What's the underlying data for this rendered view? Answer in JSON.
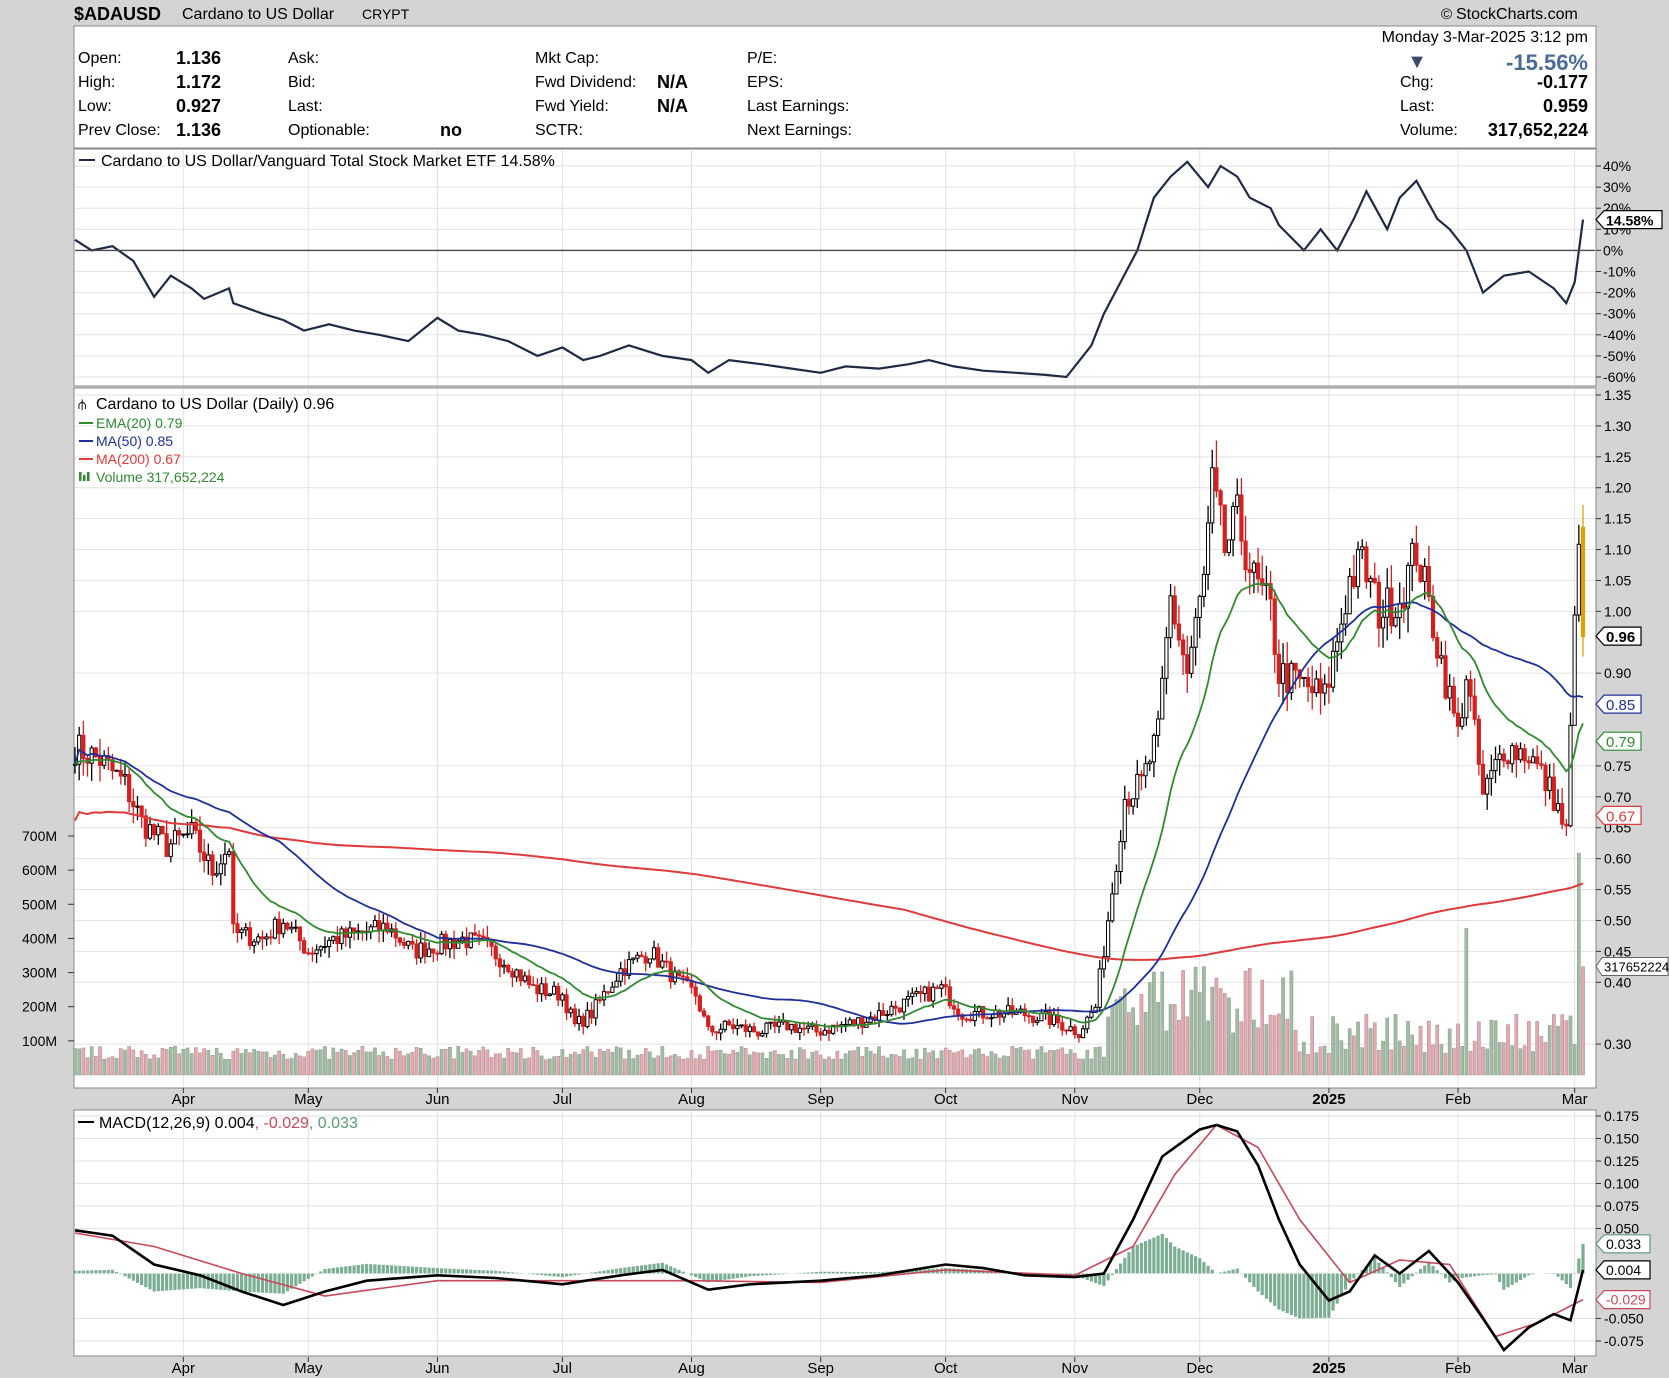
{
  "header": {
    "symbol": "$ADAUSD",
    "name": "Cardano to US Dollar",
    "exchange": "CRYPT",
    "brand": "StockCharts.com",
    "brand_symbol": "©"
  },
  "info": {
    "date": "Monday  3-Mar-2025  3:12 pm",
    "change_arrow": "▼",
    "change_pct": "-15.56%",
    "col1": [
      {
        "label": "Open:",
        "value": "1.136"
      },
      {
        "label": "High:",
        "value": "1.172"
      },
      {
        "label": "Low:",
        "value": "0.927"
      },
      {
        "label": "Prev Close:",
        "value": "1.136"
      }
    ],
    "col2": [
      {
        "label": "Ask:",
        "value": ""
      },
      {
        "label": "Bid:",
        "value": ""
      },
      {
        "label": "Last:",
        "value": ""
      },
      {
        "label": "Optionable:",
        "value": "no"
      }
    ],
    "col3": [
      {
        "label": "Mkt Cap:",
        "value": ""
      },
      {
        "label": "Fwd Dividend:",
        "value": "N/A"
      },
      {
        "label": "Fwd Yield:",
        "value": "N/A"
      },
      {
        "label": "SCTR:",
        "value": ""
      }
    ],
    "col4": [
      {
        "label": "P/E:",
        "value": ""
      },
      {
        "label": "EPS:",
        "value": ""
      },
      {
        "label": "Last Earnings:",
        "value": ""
      },
      {
        "label": "Next Earnings:",
        "value": ""
      }
    ],
    "right": [
      {
        "label": "Chg:",
        "value": "-0.177"
      },
      {
        "label": "Last:",
        "value": "0.959"
      },
      {
        "label": "Volume:",
        "value": "317,652,224"
      }
    ]
  },
  "colors": {
    "background": "#d4d4d4",
    "panel": "#ffffff",
    "grid": "#e2e2e2",
    "up": "#000000",
    "down": "#d62020",
    "ema20": "#2e8b2e",
    "ma50": "#1e2e9a",
    "ma200": "#e03a3a",
    "ratio": "#1f2a44",
    "volume_up": "#9fbd9f",
    "volume_down": "#e8a6ae",
    "macd_line": "#000000",
    "macd_signal": "#c8485a",
    "macd_hist": "#5b9a78"
  },
  "chart_data": [
    {
      "type": "line",
      "title": "Cardano to US Dollar/Vanguard Total Stock Market ETF 14.58%",
      "y_unit": "%",
      "ylim": [
        -60,
        40
      ],
      "y_ticks": [
        40,
        30,
        20,
        10,
        0,
        -10,
        -20,
        -30,
        -40,
        -50,
        -60
      ],
      "last_value_label": "14.58%",
      "series": [
        {
          "name": "Cardano to US Dollar/Vanguard Total Stock Market ETF",
          "x": [
            "2024-03-06",
            "2024-03-10",
            "2024-03-15",
            "2024-03-20",
            "2024-03-25",
            "2024-03-29",
            "2024-04-03",
            "2024-04-06",
            "2024-04-12",
            "2024-04-13",
            "2024-04-20",
            "2024-04-25",
            "2024-04-30",
            "2024-05-06",
            "2024-05-12",
            "2024-05-18",
            "2024-05-25",
            "2024-06-01",
            "2024-06-06",
            "2024-06-12",
            "2024-06-18",
            "2024-06-25",
            "2024-07-01",
            "2024-07-06",
            "2024-07-10",
            "2024-07-17",
            "2024-07-25",
            "2024-08-01",
            "2024-08-05",
            "2024-08-10",
            "2024-08-18",
            "2024-08-25",
            "2024-09-01",
            "2024-09-07",
            "2024-09-15",
            "2024-09-22",
            "2024-09-27",
            "2024-10-03",
            "2024-10-10",
            "2024-10-18",
            "2024-10-25",
            "2024-10-30",
            "2024-11-05",
            "2024-11-08",
            "2024-11-12",
            "2024-11-16",
            "2024-11-20",
            "2024-11-24",
            "2024-11-28",
            "2024-12-03",
            "2024-12-06",
            "2024-12-10",
            "2024-12-13",
            "2024-12-18",
            "2024-12-20",
            "2024-12-26",
            "2024-12-30",
            "2025-01-03",
            "2025-01-07",
            "2025-01-10",
            "2025-01-15",
            "2025-01-18",
            "2025-01-22",
            "2025-01-27",
            "2025-01-30",
            "2025-02-03",
            "2025-02-07",
            "2025-02-12",
            "2025-02-18",
            "2025-02-24",
            "2025-02-27",
            "2025-03-01",
            "2025-03-03"
          ],
          "values": [
            5,
            0,
            2,
            -5,
            -22,
            -12,
            -18,
            -23,
            -18,
            -25,
            -30,
            -33,
            -38,
            -35,
            -38,
            -40,
            -43,
            -32,
            -38,
            -40,
            -43,
            -50,
            -46,
            -52,
            -50,
            -45,
            -50,
            -52,
            -58,
            -52,
            -54,
            -56,
            -58,
            -55,
            -56,
            -54,
            -52,
            -55,
            -57,
            -58,
            -59,
            -60,
            -45,
            -30,
            -15,
            0,
            25,
            35,
            42,
            30,
            40,
            35,
            25,
            20,
            12,
            0,
            10,
            0,
            15,
            28,
            10,
            25,
            33,
            15,
            10,
            0,
            -20,
            -12,
            -10,
            -18,
            -25,
            -15,
            14.58
          ]
        }
      ]
    },
    {
      "type": "candlestick",
      "title": "Cardano to US Dollar (Daily) 0.96",
      "ylim": [
        0.25,
        1.35
      ],
      "y_ticks": [
        1.35,
        1.3,
        1.25,
        1.2,
        1.15,
        1.1,
        1.05,
        1.0,
        0.9,
        0.75,
        0.7,
        0.65,
        0.6,
        0.55,
        0.5,
        0.45,
        0.4,
        0.3
      ],
      "x_labels": [
        "Apr",
        "May",
        "Jun",
        "Jul",
        "Aug",
        "Sep",
        "Oct",
        "Nov",
        "Dec",
        "2025",
        "Feb",
        "Mar"
      ],
      "legend": [
        {
          "label": "EMA(20) 0.79",
          "color": "#2e8b2e",
          "kind": "line"
        },
        {
          "label": "MA(50) 0.85",
          "color": "#1e2e9a",
          "kind": "line"
        },
        {
          "label": "MA(200) 0.67",
          "color": "#e03a3a",
          "kind": "line"
        },
        {
          "label": "Volume 317,652,224",
          "color": "#2e8b2e",
          "kind": "bars"
        }
      ],
      "price_tags": [
        {
          "label": "0.96",
          "value": 0.96,
          "style": "bold"
        },
        {
          "label": "0.85",
          "value": 0.85,
          "color": "#1e2e9a"
        },
        {
          "label": "0.79",
          "value": 0.79,
          "color": "#2e8b2e"
        },
        {
          "label": "0.67",
          "value": 0.67,
          "color": "#e03a3a"
        }
      ],
      "close_series": {
        "x": [
          "2024-03-06",
          "2024-03-12",
          "2024-03-18",
          "2024-03-22",
          "2024-03-28",
          "2024-04-03",
          "2024-04-08",
          "2024-04-12",
          "2024-04-13",
          "2024-04-20",
          "2024-04-25",
          "2024-05-01",
          "2024-05-07",
          "2024-05-14",
          "2024-05-20",
          "2024-05-26",
          "2024-06-01",
          "2024-06-07",
          "2024-06-12",
          "2024-06-18",
          "2024-06-24",
          "2024-07-01",
          "2024-07-04",
          "2024-07-08",
          "2024-07-15",
          "2024-07-22",
          "2024-07-29",
          "2024-08-02",
          "2024-08-05",
          "2024-08-10",
          "2024-08-17",
          "2024-08-24",
          "2024-08-31",
          "2024-09-06",
          "2024-09-12",
          "2024-09-19",
          "2024-09-26",
          "2024-09-30",
          "2024-10-05",
          "2024-10-12",
          "2024-10-19",
          "2024-10-26",
          "2024-11-02",
          "2024-11-06",
          "2024-11-10",
          "2024-11-13",
          "2024-11-17",
          "2024-11-21",
          "2024-11-24",
          "2024-11-28",
          "2024-12-02",
          "2024-12-04",
          "2024-12-07",
          "2024-12-10",
          "2024-12-14",
          "2024-12-18",
          "2024-12-20",
          "2024-12-26",
          "2024-12-31",
          "2025-01-06",
          "2025-01-09",
          "2025-01-13",
          "2025-01-18",
          "2025-01-22",
          "2025-01-27",
          "2025-02-01",
          "2025-02-03",
          "2025-02-07",
          "2025-02-12",
          "2025-02-18",
          "2025-02-24",
          "2025-02-27",
          "2025-03-02",
          "2025-03-03"
        ],
        "values": [
          0.78,
          0.76,
          0.72,
          0.66,
          0.62,
          0.64,
          0.58,
          0.62,
          0.48,
          0.47,
          0.5,
          0.45,
          0.47,
          0.48,
          0.49,
          0.45,
          0.46,
          0.47,
          0.46,
          0.43,
          0.39,
          0.38,
          0.33,
          0.35,
          0.42,
          0.45,
          0.4,
          0.38,
          0.32,
          0.33,
          0.32,
          0.33,
          0.32,
          0.33,
          0.34,
          0.36,
          0.38,
          0.39,
          0.35,
          0.35,
          0.35,
          0.34,
          0.32,
          0.36,
          0.55,
          0.7,
          0.72,
          0.8,
          1.02,
          0.9,
          1.05,
          1.2,
          1.1,
          1.15,
          1.05,
          1.0,
          0.9,
          0.88,
          0.86,
          1.05,
          1.08,
          1.0,
          1.02,
          1.1,
          0.95,
          0.8,
          0.9,
          0.7,
          0.78,
          0.77,
          0.7,
          0.64,
          1.14,
          0.96
        ]
      },
      "ohlc_last": {
        "open": 1.136,
        "high": 1.172,
        "low": 0.927,
        "close": 0.959
      },
      "moving_averages": {
        "EMA(20)": {
          "last": 0.79
        },
        "MA(50)": {
          "last": 0.85
        },
        "MA(200)": {
          "last": 0.67
        }
      },
      "volume_axis": {
        "ticks": [
          "700M",
          "600M",
          "500M",
          "400M",
          "300M",
          "200M",
          "100M"
        ],
        "values": [
          700,
          600,
          500,
          400,
          300,
          200,
          100
        ],
        "unit": "M"
      },
      "volume_last_label": "317652224"
    },
    {
      "type": "line",
      "title": "MACD(12,26,9) 0.004, -0.029, 0.033",
      "legend_parts": [
        "MACD(12,26,9) 0.004",
        ", -0.029",
        ", 0.033"
      ],
      "ylim": [
        -0.085,
        0.175
      ],
      "y_ticks": [
        0.175,
        0.15,
        0.125,
        0.1,
        0.075,
        0.05,
        -0.05,
        -0.075
      ],
      "tags": [
        {
          "label": "0.033",
          "value": 0.033
        },
        {
          "label": "0.004",
          "value": 0.004
        },
        {
          "label": "-0.029",
          "value": -0.029
        }
      ],
      "x_labels": [
        "Apr",
        "May",
        "Jun",
        "Jul",
        "Aug",
        "Sep",
        "Oct",
        "Nov",
        "Dec",
        "2025",
        "Feb",
        "Mar"
      ],
      "series": [
        {
          "name": "MACD(12,26,9)",
          "x": [
            "2024-03-06",
            "2024-03-15",
            "2024-03-25",
            "2024-04-05",
            "2024-04-15",
            "2024-04-25",
            "2024-05-05",
            "2024-05-15",
            "2024-06-01",
            "2024-06-15",
            "2024-07-01",
            "2024-07-15",
            "2024-07-25",
            "2024-08-05",
            "2024-08-15",
            "2024-09-01",
            "2024-09-15",
            "2024-10-01",
            "2024-10-10",
            "2024-10-20",
            "2024-11-01",
            "2024-11-08",
            "2024-11-15",
            "2024-11-22",
            "2024-12-01",
            "2024-12-05",
            "2024-12-10",
            "2024-12-15",
            "2024-12-20",
            "2024-12-25",
            "2025-01-01",
            "2025-01-06",
            "2025-01-12",
            "2025-01-18",
            "2025-01-25",
            "2025-02-01",
            "2025-02-07",
            "2025-02-12",
            "2025-02-18",
            "2025-02-24",
            "2025-02-28",
            "2025-03-03"
          ],
          "values": [
            0.048,
            0.042,
            0.01,
            -0.002,
            -0.02,
            -0.035,
            -0.02,
            -0.008,
            -0.002,
            -0.005,
            -0.012,
            -0.002,
            0.004,
            -0.018,
            -0.012,
            -0.008,
            -0.002,
            0.01,
            0.006,
            -0.002,
            -0.004,
            0.0,
            0.06,
            0.13,
            0.16,
            0.165,
            0.158,
            0.12,
            0.06,
            0.01,
            -0.03,
            -0.02,
            0.02,
            0.0,
            0.025,
            -0.01,
            -0.05,
            -0.085,
            -0.06,
            -0.045,
            -0.052,
            0.004
          ]
        },
        {
          "name": "Signal",
          "x": [
            "2024-03-06",
            "2024-03-25",
            "2024-04-15",
            "2024-05-05",
            "2024-06-01",
            "2024-07-01",
            "2024-08-01",
            "2024-09-01",
            "2024-10-01",
            "2024-11-01",
            "2024-11-15",
            "2024-11-25",
            "2024-12-05",
            "2024-12-15",
            "2024-12-25",
            "2025-01-06",
            "2025-01-18",
            "2025-01-30",
            "2025-02-10",
            "2025-02-20",
            "2025-03-03"
          ],
          "values": [
            0.045,
            0.03,
            0.0,
            -0.025,
            -0.008,
            -0.008,
            -0.008,
            -0.01,
            0.004,
            -0.002,
            0.03,
            0.11,
            0.165,
            0.14,
            0.06,
            -0.01,
            0.015,
            0.01,
            -0.07,
            -0.055,
            -0.029
          ]
        },
        {
          "name": "Histogram",
          "kind": "bars",
          "last": 0.033
        }
      ]
    }
  ]
}
